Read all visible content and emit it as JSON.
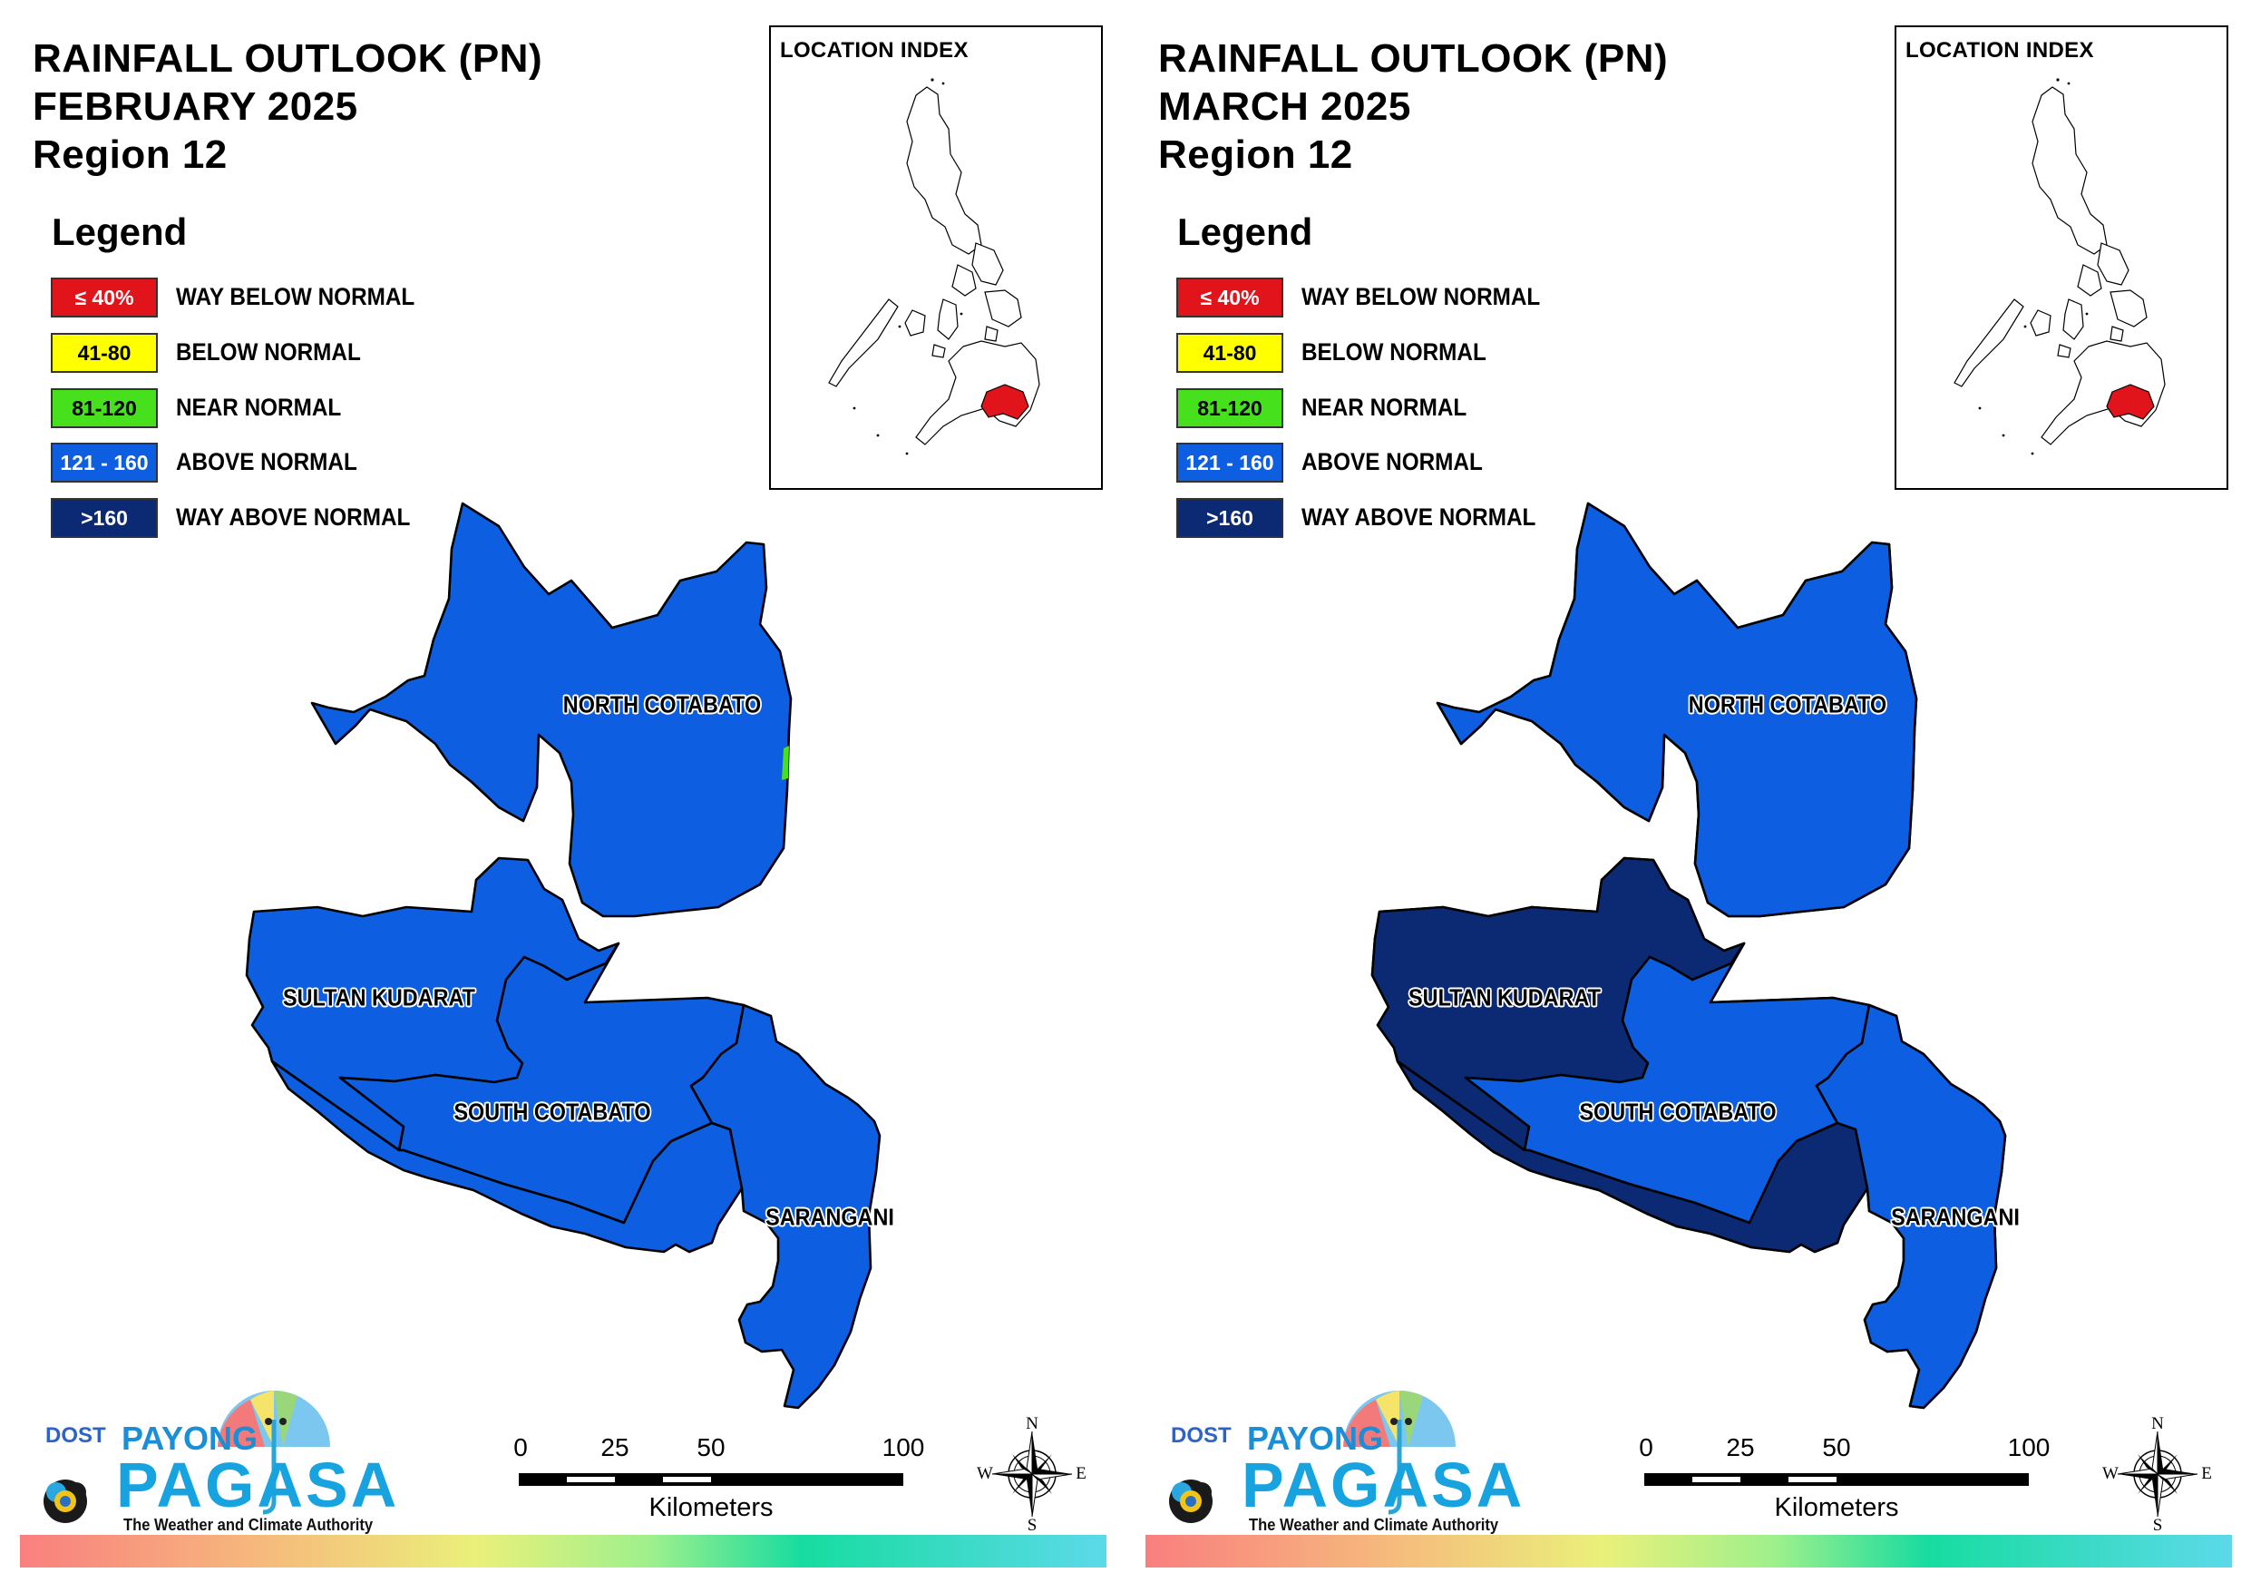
{
  "panels": [
    {
      "id": "february",
      "title": [
        "RAINFALL OUTLOOK (PN)",
        "FEBRUARY 2025",
        "Region 12"
      ],
      "legend_title": "Legend",
      "legend": [
        {
          "range": "≤ 40%",
          "label": "WAY BELOW NORMAL",
          "color": "#e1141c",
          "text_color": "#ffffff"
        },
        {
          "range": "41-80",
          "label": "BELOW NORMAL",
          "color": "#ffff00",
          "text_color": "#000000"
        },
        {
          "range": "81-120",
          "label": "NEAR NORMAL",
          "color": "#47e01d",
          "text_color": "#000000"
        },
        {
          "range": "121 - 160",
          "label": "ABOVE NORMAL",
          "color": "#0d5ee0",
          "text_color": "#ffffff"
        },
        {
          "range": ">160",
          "label": "WAY ABOVE NORMAL",
          "color": "#0c2a73",
          "text_color": "#ffffff"
        }
      ],
      "inset_title": "LOCATION INDEX",
      "provinces": [
        {
          "name": "NORTH COTABATO",
          "category": "ABOVE NORMAL"
        },
        {
          "name": "SULTAN KUDARAT",
          "category": "ABOVE NORMAL"
        },
        {
          "name": "SOUTH COTABATO",
          "category": "ABOVE NORMAL"
        },
        {
          "name": "SARANGANI",
          "category": "ABOVE NORMAL"
        }
      ],
      "west_portion_category": "ABOVE NORMAL",
      "east_fringe_category": "NEAR NORMAL",
      "scale": {
        "ticks": [
          "0",
          "25",
          "50",
          "100"
        ],
        "unit": "Kilometers"
      },
      "compass": {
        "n": "N",
        "e": "E",
        "s": "S",
        "w": "W"
      },
      "logo": {
        "agency": "DOST",
        "line1": "PAYONG",
        "line2": "PAGASA",
        "tagline": "The Weather and Climate Authority"
      }
    },
    {
      "id": "march",
      "title": [
        "RAINFALL OUTLOOK (PN)",
        "MARCH 2025",
        "Region 12"
      ],
      "legend_title": "Legend",
      "legend": [
        {
          "range": "≤ 40%",
          "label": "WAY BELOW NORMAL",
          "color": "#e1141c",
          "text_color": "#ffffff"
        },
        {
          "range": "41-80",
          "label": "BELOW NORMAL",
          "color": "#ffff00",
          "text_color": "#000000"
        },
        {
          "range": "81-120",
          "label": "NEAR NORMAL",
          "color": "#47e01d",
          "text_color": "#000000"
        },
        {
          "range": "121 - 160",
          "label": "ABOVE NORMAL",
          "color": "#0d5ee0",
          "text_color": "#ffffff"
        },
        {
          "range": ">160",
          "label": "WAY ABOVE NORMAL",
          "color": "#0c2a73",
          "text_color": "#ffffff"
        }
      ],
      "inset_title": "LOCATION INDEX",
      "provinces": [
        {
          "name": "NORTH COTABATO",
          "category": "ABOVE NORMAL"
        },
        {
          "name": "SULTAN KUDARAT",
          "category": "WAY ABOVE NORMAL"
        },
        {
          "name": "SOUTH COTABATO",
          "category": "ABOVE NORMAL"
        },
        {
          "name": "SARANGANI",
          "category": "ABOVE NORMAL"
        }
      ],
      "west_portion_category": "WAY ABOVE NORMAL",
      "east_fringe_category": "ABOVE NORMAL",
      "scale": {
        "ticks": [
          "0",
          "25",
          "50",
          "100"
        ],
        "unit": "Kilometers"
      },
      "compass": {
        "n": "N",
        "e": "E",
        "s": "S",
        "w": "W"
      },
      "logo": {
        "agency": "DOST",
        "line1": "PAYONG",
        "line2": "PAGASA",
        "tagline": "The Weather and Climate Authority"
      }
    }
  ]
}
